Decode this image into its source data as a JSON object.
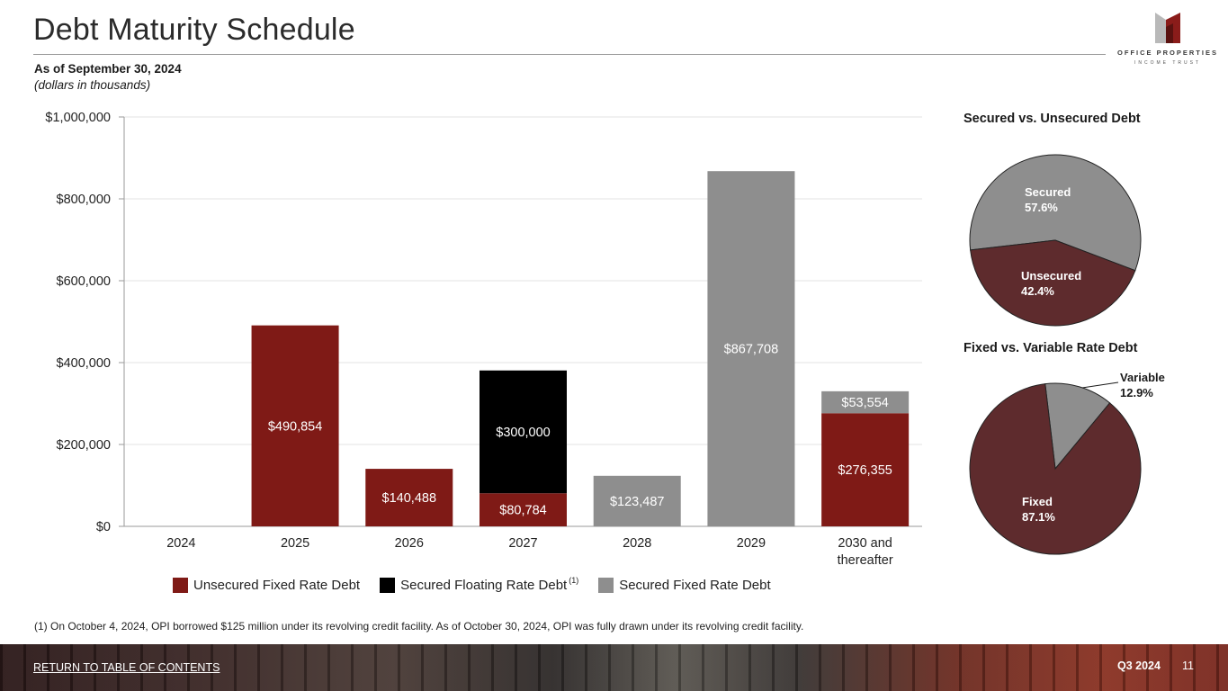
{
  "header": {
    "title": "Debt Maturity Schedule",
    "subtitle": "As of September 30, 2024",
    "units": "(dollars in thousands)"
  },
  "logo": {
    "name": "OFFICE PROPERTIES",
    "sub": "INCOME TRUST"
  },
  "colors": {
    "unsecured_fixed": "#7f1a16",
    "secured_floating": "#000000",
    "secured_fixed": "#8e8e8e",
    "pie_dark": "#5e2b2d",
    "pie_gray": "#8e8e8e"
  },
  "chart_data": [
    {
      "type": "bar",
      "stacked": true,
      "categories": [
        "2024",
        "2025",
        "2026",
        "2027",
        "2028",
        "2029",
        "2030 and thereafter"
      ],
      "series": [
        {
          "name": "Unsecured Fixed Rate Debt",
          "values": [
            0,
            490854,
            140488,
            80784,
            0,
            0,
            276355
          ],
          "labels": [
            "",
            "$490,854",
            "$140,488",
            "$80,784",
            "",
            "",
            "$276,355"
          ]
        },
        {
          "name": "Secured Floating Rate Debt",
          "values": [
            0,
            0,
            0,
            300000,
            0,
            0,
            0
          ],
          "labels": [
            "",
            "",
            "",
            "$300,000",
            "",
            "",
            ""
          ]
        },
        {
          "name": "Secured Fixed Rate Debt",
          "values": [
            0,
            0,
            0,
            0,
            123487,
            867708,
            53554
          ],
          "labels": [
            "",
            "",
            "",
            "",
            "$123,487",
            "$867,708",
            "$53,554"
          ]
        }
      ],
      "yticks": [
        "$0",
        "$200,000",
        "$400,000",
        "$600,000",
        "$800,000",
        "$1,000,000"
      ],
      "ylim": [
        0,
        1000000
      ],
      "grid": true,
      "legend": "bottom",
      "legend_footnote": "(1)"
    },
    {
      "type": "pie",
      "title": "Secured vs. Unsecured Debt",
      "slices": [
        {
          "label": "Secured",
          "value": 57.6,
          "text": "57.6%"
        },
        {
          "label": "Unsecured",
          "value": 42.4,
          "text": "42.4%"
        }
      ]
    },
    {
      "type": "pie",
      "title": "Fixed vs. Variable Rate Debt",
      "slices": [
        {
          "label": "Variable",
          "value": 12.9,
          "text": "12.9%"
        },
        {
          "label": "Fixed",
          "value": 87.1,
          "text": "87.1%"
        }
      ]
    }
  ],
  "footnote": "(1)  On October 4, 2024, OPI borrowed $125 million under its revolving credit facility. As of October 30, 2024, OPI was fully drawn under its revolving credit facility.",
  "footer": {
    "toc_link": "RETURN TO TABLE OF CONTENTS",
    "quarter": "Q3 2024",
    "page": "11"
  }
}
